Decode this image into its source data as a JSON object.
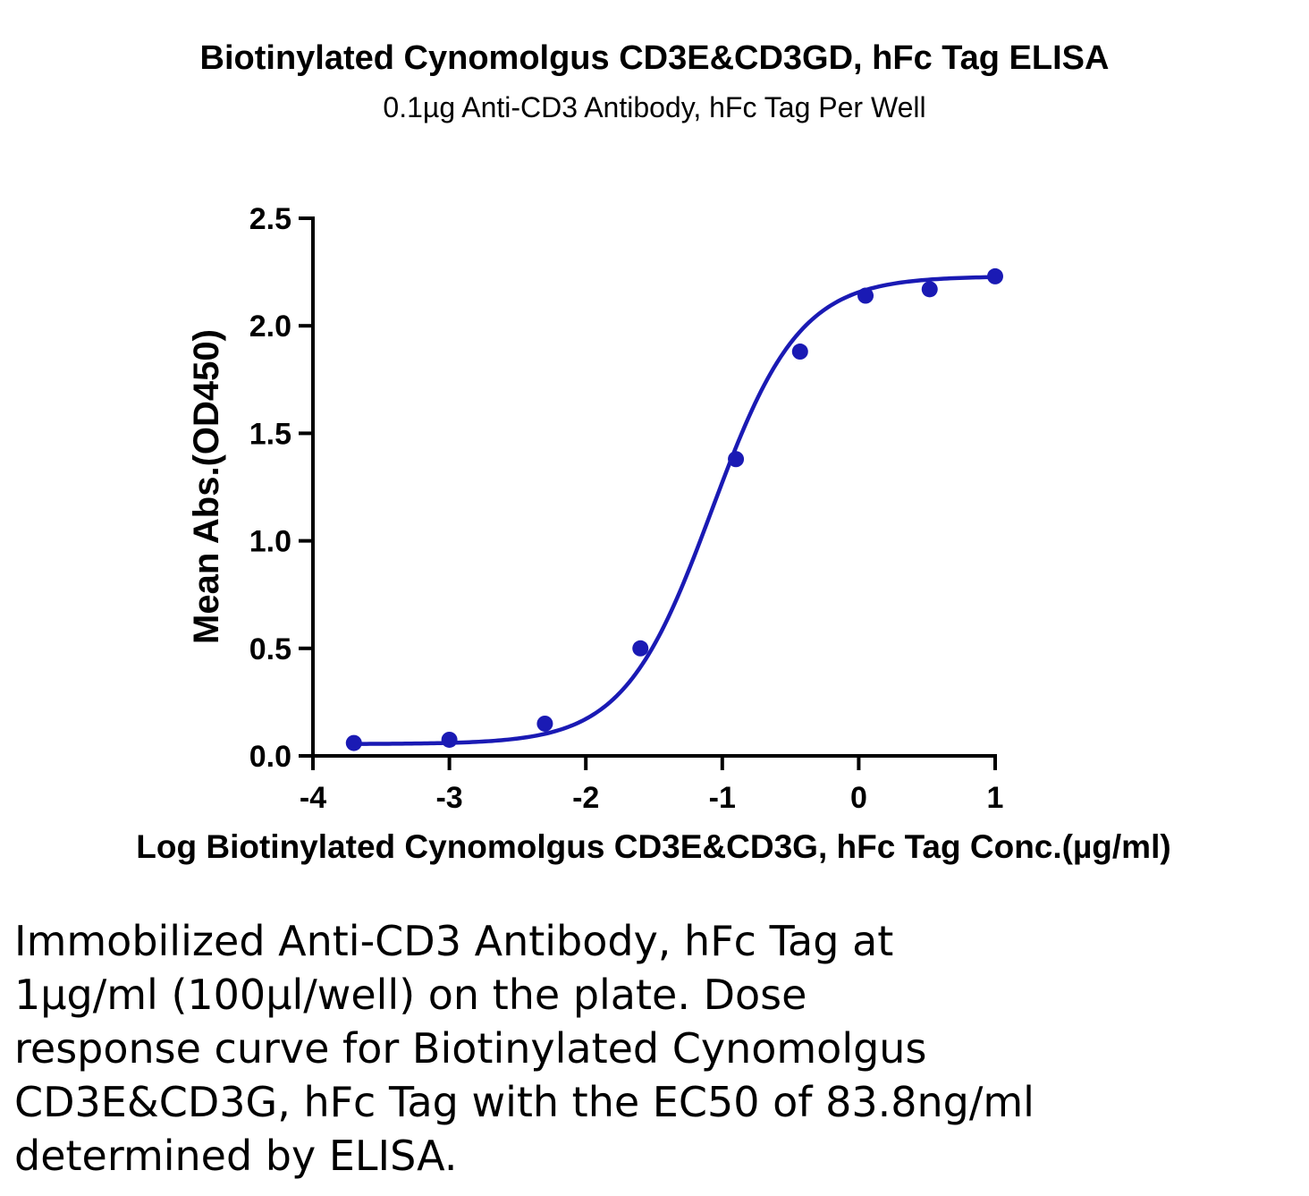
{
  "chart_data": {
    "type": "scatter",
    "title": "Biotinylated Cynomolgus CD3E&CD3GD, hFc Tag ELISA",
    "subtitle": "0.1µg Anti-CD3 Antibody, hFc Tag Per Well",
    "xlabel": "Log Biotinylated Cynomolgus CD3E&CD3G, hFc Tag Conc.(µg/ml)",
    "ylabel": "Mean Abs.(OD450)",
    "xlim": [
      -4,
      1
    ],
    "ylim": [
      0,
      2.5
    ],
    "xticks": [
      "-4",
      "-3",
      "-2",
      "-1",
      "0",
      "1"
    ],
    "yticks": [
      "0.0",
      "0.5",
      "1.0",
      "1.5",
      "2.0",
      "2.5"
    ],
    "grid": false,
    "series": [
      {
        "color": "#1a1ab4",
        "points": [
          {
            "x": -3.7,
            "y": 0.06
          },
          {
            "x": -3.0,
            "y": 0.075
          },
          {
            "x": -2.3,
            "y": 0.15
          },
          {
            "x": -1.6,
            "y": 0.5
          },
          {
            "x": -0.9,
            "y": 1.38
          },
          {
            "x": -0.43,
            "y": 1.88
          },
          {
            "x": 0.05,
            "y": 2.14
          },
          {
            "x": 0.52,
            "y": 2.17
          },
          {
            "x": 1.0,
            "y": 2.23
          }
        ],
        "fit": {
          "bottom": 0.055,
          "top": 2.23,
          "log_ec50": -1.077,
          "hill_slope": 1.35
        }
      }
    ]
  },
  "caption_lines": [
    "Immobilized Anti-CD3 Antibody, hFc Tag at",
    "1µg/ml (100µl/well) on the plate. Dose",
    "response curve for Biotinylated Cynomolgus",
    "CD3E&CD3G, hFc Tag with the EC50 of 83.8ng/ml",
    "determined by ELISA."
  ]
}
